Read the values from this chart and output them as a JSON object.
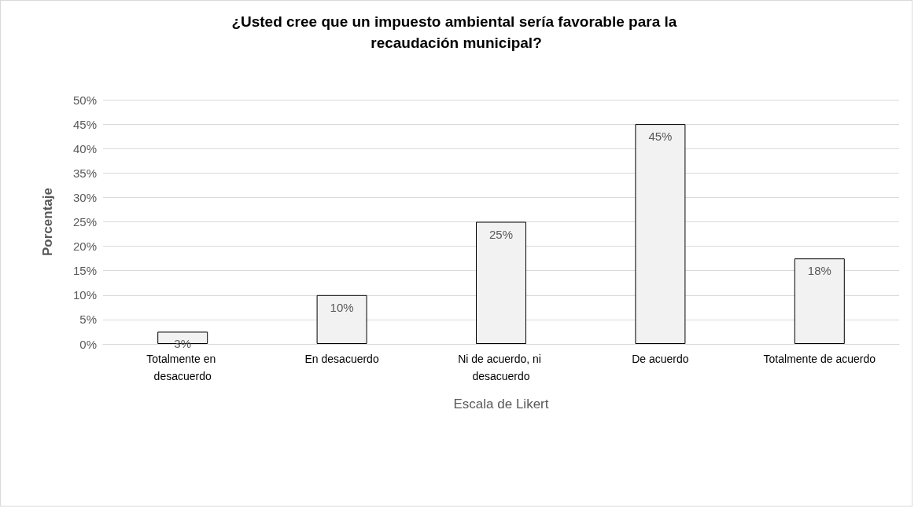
{
  "chart_data": {
    "type": "bar",
    "title": "¿Usted cree que un impuesto ambiental sería favorable para la recaudación municipal?",
    "xlabel": "Escala de Likert",
    "ylabel": "Porcentaje",
    "categories": [
      "Totalmente en desacuerdo",
      "En desacuerdo",
      "Ni de acuerdo, ni desacuerdo",
      "De acuerdo",
      "Totalmente de acuerdo"
    ],
    "values": [
      2.5,
      10,
      25,
      45,
      17.5
    ],
    "value_labels": [
      "3%",
      "10%",
      "25%",
      "45%",
      "18%"
    ],
    "color": "#f2f2f2",
    "ylim": [
      0,
      50
    ],
    "yticks": [
      {
        "value": 0,
        "label": "0%"
      },
      {
        "value": 5,
        "label": "5%"
      },
      {
        "value": 10,
        "label": "10%"
      },
      {
        "value": 15,
        "label": "15%"
      },
      {
        "value": 20,
        "label": "20%"
      },
      {
        "value": 25,
        "label": "25%"
      },
      {
        "value": 30,
        "label": "30%"
      },
      {
        "value": 35,
        "label": "35%"
      },
      {
        "value": 40,
        "label": "40%"
      },
      {
        "value": 45,
        "label": "45%"
      },
      {
        "value": 50,
        "label": "50%"
      }
    ],
    "grid": "y"
  }
}
